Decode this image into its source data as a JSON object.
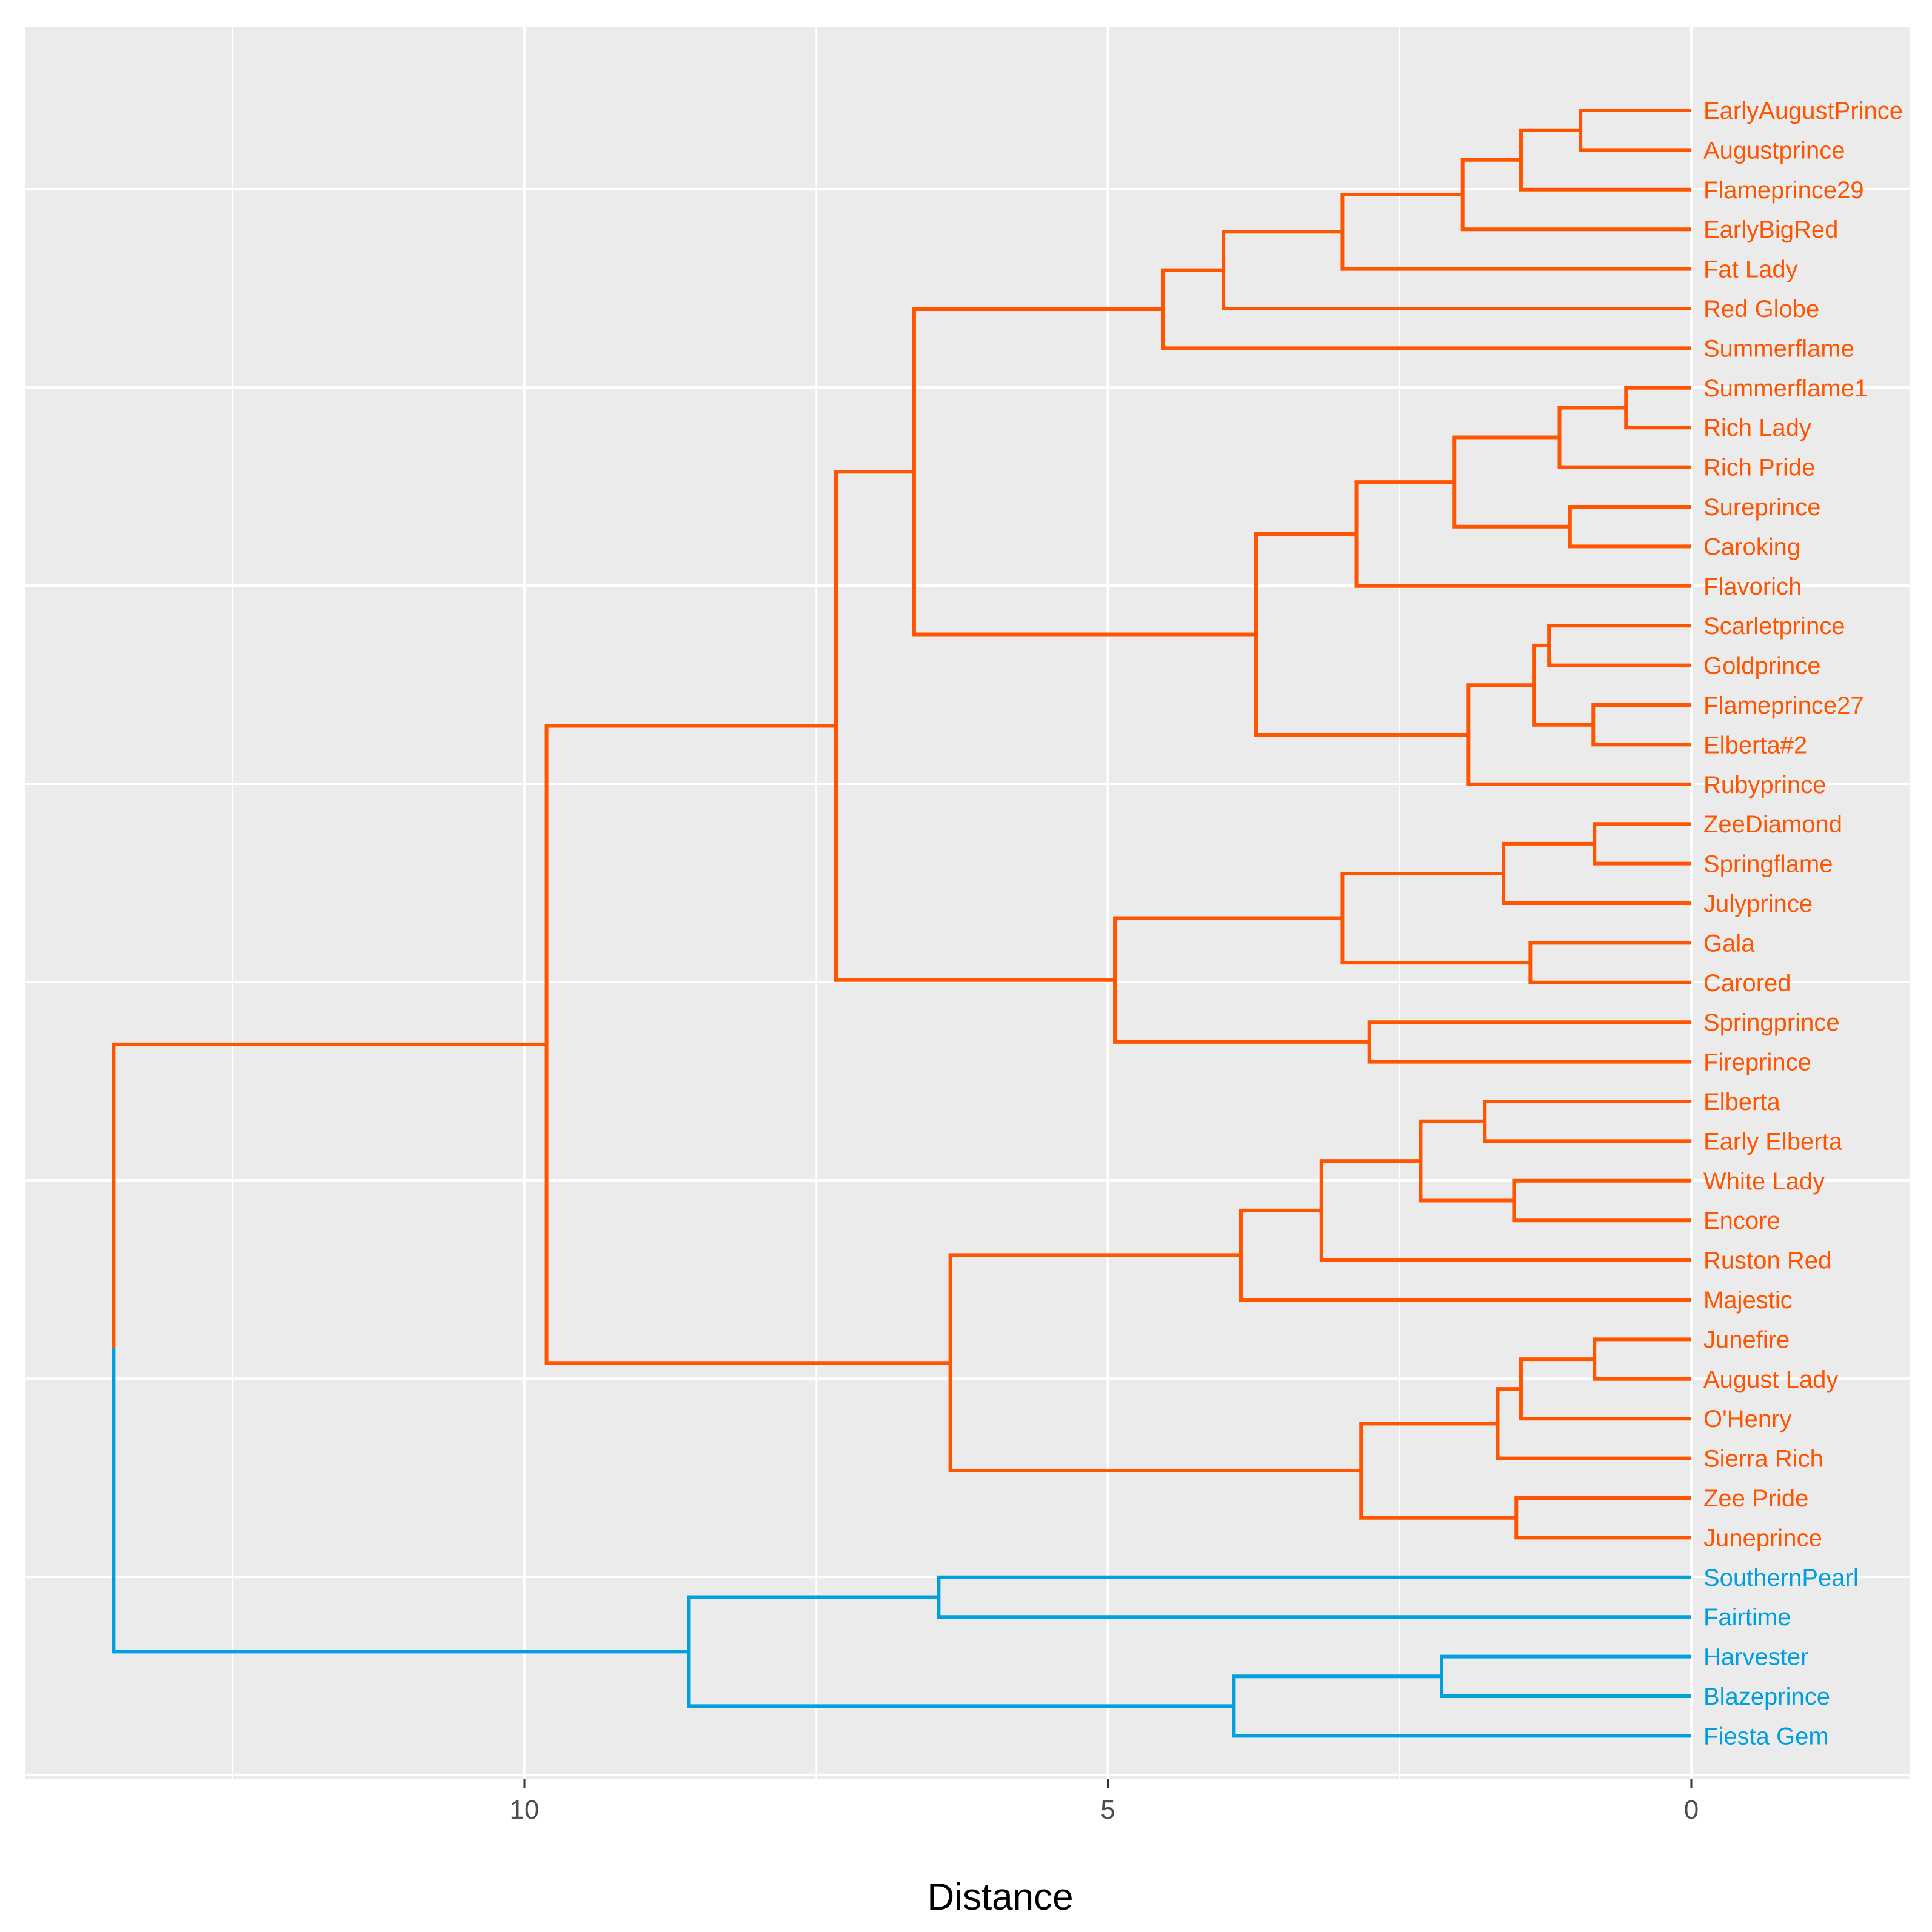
{
  "chart_data": {
    "type": "dendrogram",
    "orientation": "right-to-left",
    "xlabel": "Distance",
    "x_ticks": [
      10,
      5,
      0
    ],
    "xlim": [
      14.3,
      -1.9
    ],
    "grid": true,
    "colors": {
      "panel": "#ebebeb",
      "grid": "#ffffff",
      "cluster_1": "#ff5500",
      "cluster_2": "#00a0de"
    },
    "leaves": [
      {
        "name": "EarlyAugustPrince",
        "color": "#ff5500"
      },
      {
        "name": "Augustprince",
        "color": "#ff5500"
      },
      {
        "name": "Flameprince29",
        "color": "#ff5500"
      },
      {
        "name": "EarlyBigRed",
        "color": "#ff5500"
      },
      {
        "name": "Fat Lady",
        "color": "#ff5500"
      },
      {
        "name": "Red Globe",
        "color": "#ff5500"
      },
      {
        "name": "Summerflame",
        "color": "#ff5500"
      },
      {
        "name": "Summerflame1",
        "color": "#ff5500"
      },
      {
        "name": "Rich Lady",
        "color": "#ff5500"
      },
      {
        "name": "Rich Pride",
        "color": "#ff5500"
      },
      {
        "name": "Sureprince",
        "color": "#ff5500"
      },
      {
        "name": "Caroking",
        "color": "#ff5500"
      },
      {
        "name": "Flavorich",
        "color": "#ff5500"
      },
      {
        "name": "Scarletprince",
        "color": "#ff5500"
      },
      {
        "name": "Goldprince",
        "color": "#ff5500"
      },
      {
        "name": "Flameprince27",
        "color": "#ff5500"
      },
      {
        "name": "Elberta#2",
        "color": "#ff5500"
      },
      {
        "name": "Rubyprince",
        "color": "#ff5500"
      },
      {
        "name": "ZeeDiamond",
        "color": "#ff5500"
      },
      {
        "name": "Springflame",
        "color": "#ff5500"
      },
      {
        "name": "Julyprince",
        "color": "#ff5500"
      },
      {
        "name": "Gala",
        "color": "#ff5500"
      },
      {
        "name": "Carored",
        "color": "#ff5500"
      },
      {
        "name": "Springprince",
        "color": "#ff5500"
      },
      {
        "name": "Fireprince",
        "color": "#ff5500"
      },
      {
        "name": "Elberta",
        "color": "#ff5500"
      },
      {
        "name": "Early Elberta",
        "color": "#ff5500"
      },
      {
        "name": "White Lady",
        "color": "#ff5500"
      },
      {
        "name": "Encore",
        "color": "#ff5500"
      },
      {
        "name": "Ruston Red",
        "color": "#ff5500"
      },
      {
        "name": "Majestic",
        "color": "#ff5500"
      },
      {
        "name": "Junefire",
        "color": "#ff5500"
      },
      {
        "name": "August Lady",
        "color": "#ff5500"
      },
      {
        "name": "O'Henry",
        "color": "#ff5500"
      },
      {
        "name": "Sierra Rich",
        "color": "#ff5500"
      },
      {
        "name": "Zee Pride",
        "color": "#ff5500"
      },
      {
        "name": "Juneprince",
        "color": "#ff5500"
      },
      {
        "name": "SouthernPearl",
        "color": "#00a0de"
      },
      {
        "name": "Fairtime",
        "color": "#00a0de"
      },
      {
        "name": "Harvester",
        "color": "#00a0de"
      },
      {
        "name": "Blazeprince",
        "color": "#00a0de"
      },
      {
        "name": "Fiesta Gem",
        "color": "#00a0de"
      }
    ],
    "merges": [
      {
        "id": "m1",
        "a": 0,
        "b": 1,
        "height": 0.95,
        "color": "#ff5500"
      },
      {
        "id": "m2",
        "a": "m1",
        "b": 2,
        "height": 1.46,
        "color": "#ff5500"
      },
      {
        "id": "m3",
        "a": "m2",
        "b": 3,
        "height": 1.96,
        "color": "#ff5500"
      },
      {
        "id": "m4",
        "a": "m3",
        "b": 4,
        "height": 2.99,
        "color": "#ff5500"
      },
      {
        "id": "m5",
        "a": "m4",
        "b": 5,
        "height": 4.01,
        "color": "#ff5500"
      },
      {
        "id": "m6",
        "a": "m5",
        "b": 6,
        "height": 4.53,
        "color": "#ff5500"
      },
      {
        "id": "m7",
        "a": 7,
        "b": 8,
        "height": 0.56,
        "color": "#ff5500"
      },
      {
        "id": "m8",
        "a": "m7",
        "b": 9,
        "height": 1.13,
        "color": "#ff5500"
      },
      {
        "id": "m9",
        "a": 10,
        "b": 11,
        "height": 1.04,
        "color": "#ff5500"
      },
      {
        "id": "m10",
        "a": "m8",
        "b": "m9",
        "height": 2.03,
        "color": "#ff5500"
      },
      {
        "id": "m11",
        "a": "m10",
        "b": 12,
        "height": 2.87,
        "color": "#ff5500"
      },
      {
        "id": "m12",
        "a": 13,
        "b": 14,
        "height": 1.22,
        "color": "#ff5500"
      },
      {
        "id": "m13",
        "a": 15,
        "b": 16,
        "height": 0.84,
        "color": "#ff5500"
      },
      {
        "id": "m14",
        "a": "m12",
        "b": "m13",
        "height": 1.35,
        "color": "#ff5500"
      },
      {
        "id": "m15",
        "a": "m14",
        "b": 17,
        "height": 1.91,
        "color": "#ff5500"
      },
      {
        "id": "m16",
        "a": "m11",
        "b": "m15",
        "height": 3.73,
        "color": "#ff5500"
      },
      {
        "id": "m17",
        "a": "m6",
        "b": "m16",
        "height": 6.66,
        "color": "#ff5500"
      },
      {
        "id": "m18",
        "a": 18,
        "b": 19,
        "height": 0.83,
        "color": "#ff5500"
      },
      {
        "id": "m19",
        "a": "m18",
        "b": 20,
        "height": 1.61,
        "color": "#ff5500"
      },
      {
        "id": "m20",
        "a": 21,
        "b": 22,
        "height": 1.38,
        "color": "#ff5500"
      },
      {
        "id": "m21",
        "a": "m19",
        "b": "m20",
        "height": 2.99,
        "color": "#ff5500"
      },
      {
        "id": "m22",
        "a": 23,
        "b": 24,
        "height": 2.76,
        "color": "#ff5500"
      },
      {
        "id": "m23",
        "a": "m21",
        "b": "m22",
        "height": 4.94,
        "color": "#ff5500"
      },
      {
        "id": "m24",
        "a": "m17",
        "b": "m23",
        "height": 7.33,
        "color": "#ff5500"
      },
      {
        "id": "m25",
        "a": 25,
        "b": 26,
        "height": 1.77,
        "color": "#ff5500"
      },
      {
        "id": "m26",
        "a": 27,
        "b": 28,
        "height": 1.52,
        "color": "#ff5500"
      },
      {
        "id": "m27",
        "a": "m25",
        "b": "m26",
        "height": 2.32,
        "color": "#ff5500"
      },
      {
        "id": "m28",
        "a": "m27",
        "b": 29,
        "height": 3.17,
        "color": "#ff5500"
      },
      {
        "id": "m29",
        "a": "m28",
        "b": 30,
        "height": 3.86,
        "color": "#ff5500"
      },
      {
        "id": "m30",
        "a": 31,
        "b": 32,
        "height": 0.83,
        "color": "#ff5500"
      },
      {
        "id": "m31",
        "a": "m30",
        "b": 33,
        "height": 1.46,
        "color": "#ff5500"
      },
      {
        "id": "m32",
        "a": "m31",
        "b": 34,
        "height": 1.66,
        "color": "#ff5500"
      },
      {
        "id": "m33",
        "a": 35,
        "b": 36,
        "height": 1.5,
        "color": "#ff5500"
      },
      {
        "id": "m34",
        "a": "m32",
        "b": "m33",
        "height": 2.83,
        "color": "#ff5500"
      },
      {
        "id": "m35",
        "a": "m29",
        "b": "m34",
        "height": 6.35,
        "color": "#ff5500"
      },
      {
        "id": "m36",
        "a": "m24",
        "b": "m35",
        "height": 9.81,
        "color": "#ff5500"
      },
      {
        "id": "m37",
        "a": 37,
        "b": 38,
        "height": 6.45,
        "color": "#00a0de"
      },
      {
        "id": "m38",
        "a": 39,
        "b": 40,
        "height": 2.14,
        "color": "#00a0de"
      },
      {
        "id": "m39",
        "a": "m38",
        "b": 41,
        "height": 3.92,
        "color": "#00a0de"
      },
      {
        "id": "m40",
        "a": "m37",
        "b": "m39",
        "height": 8.59,
        "color": "#00a0de"
      },
      {
        "id": "m41",
        "a": "m36",
        "b": "m40",
        "height": 13.52,
        "color": "split"
      }
    ]
  }
}
